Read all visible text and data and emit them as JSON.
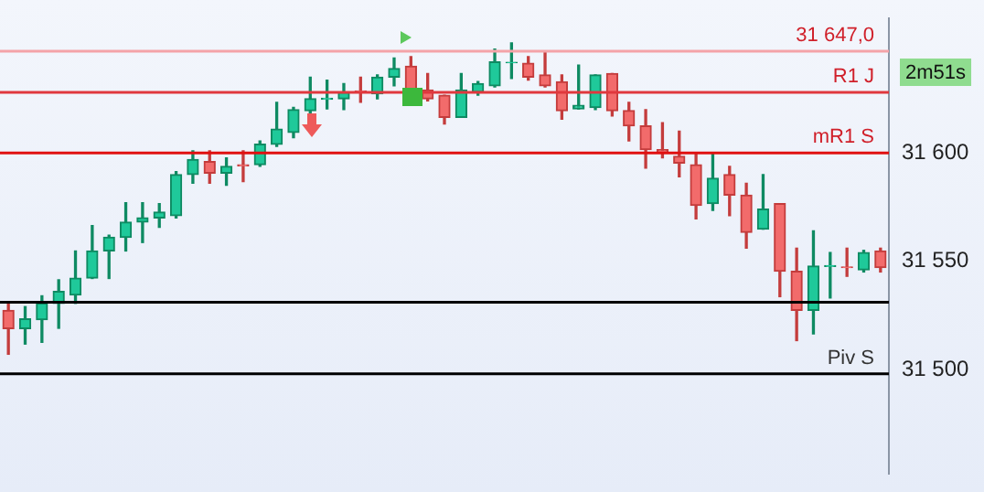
{
  "chart_data": {
    "type": "candlestick",
    "categories": [
      null,
      null,
      null,
      null,
      null,
      null,
      null,
      null,
      null,
      null,
      null,
      null,
      null,
      null,
      null,
      null,
      null,
      null,
      null,
      null,
      null,
      null,
      null,
      null,
      null,
      null,
      null,
      null,
      null,
      null,
      null,
      null,
      null,
      null,
      null,
      null,
      null,
      null,
      null,
      null,
      null,
      null,
      null,
      null,
      null,
      null,
      null,
      null,
      null,
      null,
      null,
      null,
      null
    ],
    "ohlc": [
      [
        31527.3,
        31530.5,
        31507,
        31518.8
      ],
      [
        31518.8,
        31529,
        31511.7,
        31523.4
      ],
      [
        31523,
        31534,
        31512.5,
        31530.5
      ],
      [
        31530.5,
        31541.4,
        31519,
        31536
      ],
      [
        31534.4,
        31554.7,
        31530.5,
        31542.2
      ],
      [
        31542.2,
        31566.4,
        31542,
        31554.7
      ],
      [
        31554.7,
        31562,
        31542,
        31561
      ],
      [
        31561,
        31577,
        31554.7,
        31568
      ],
      [
        31568,
        31577,
        31558.6,
        31570
      ],
      [
        31570,
        31576.6,
        31565.6,
        31572.7
      ],
      [
        31571,
        31591.4,
        31570,
        31590
      ],
      [
        31590,
        31601,
        31586,
        31597
      ],
      [
        31596,
        31601,
        31586,
        31590.6
      ],
      [
        31590.6,
        31597.7,
        31585,
        31593.8
      ],
      [
        31594.5,
        31601,
        31586.7,
        31594
      ],
      [
        31594.5,
        31605.5,
        31593.8,
        31604
      ],
      [
        31604,
        31623.4,
        31603,
        31611
      ],
      [
        31609.4,
        31621,
        31607,
        31620
      ],
      [
        31619.5,
        31635,
        31617,
        31625
      ],
      [
        31624.8,
        31633.6,
        31620.3,
        31625.2
      ],
      [
        31625,
        31632,
        31620,
        31628
      ],
      [
        31628.6,
        31635,
        31623.4,
        31628.2
      ],
      [
        31627.3,
        31636,
        31625,
        31635
      ],
      [
        31635,
        31643.8,
        31631,
        31639
      ],
      [
        31640,
        31644.5,
        31628,
        31628
      ],
      [
        31629,
        31636.7,
        31624,
        31625
      ],
      [
        31626.6,
        31626.6,
        31613.3,
        31616.4
      ],
      [
        31616.4,
        31636.7,
        31616.4,
        31629
      ],
      [
        31628,
        31633,
        31626.6,
        31632
      ],
      [
        31631,
        31648,
        31630.5,
        31642
      ],
      [
        31641.6,
        31650.8,
        31634.4,
        31641.8
      ],
      [
        31641.4,
        31644.5,
        31633.6,
        31635
      ],
      [
        31636,
        31647,
        31630.5,
        31631
      ],
      [
        31632.8,
        31636,
        31615.6,
        31619.5
      ],
      [
        31620.3,
        31640.6,
        31620.3,
        31622
      ],
      [
        31621,
        31636,
        31620,
        31636
      ],
      [
        31636.7,
        31636.7,
        31617,
        31619.5
      ],
      [
        31619.5,
        31623.4,
        31605.5,
        31612.5
      ],
      [
        31612.5,
        31620,
        31593,
        31601.5
      ],
      [
        31601.5,
        31614,
        31597.7,
        31600
      ],
      [
        31598.4,
        31610,
        31589,
        31595.3
      ],
      [
        31594.5,
        31600,
        31569.5,
        31575.8
      ],
      [
        31576.6,
        31600,
        31573.4,
        31588.3
      ],
      [
        31590,
        31593.8,
        31571,
        31580.5
      ],
      [
        31580.5,
        31586,
        31556,
        31563.3
      ],
      [
        31564.8,
        31590,
        31564.8,
        31574
      ],
      [
        31576.6,
        31576.6,
        31533.6,
        31545.3
      ],
      [
        31545.3,
        31556,
        31513.3,
        31527.3
      ],
      [
        31527.3,
        31564,
        31516.4,
        31547.7
      ],
      [
        31547.6,
        31554,
        31533,
        31548
      ],
      [
        31547.3,
        31556,
        31543,
        31547
      ],
      [
        31546,
        31555,
        31545,
        31554
      ],
      [
        31554.7,
        31556,
        31545,
        31547
      ]
    ],
    "ylim": [
      31452,
      31662
    ],
    "yticks": [
      {
        "value": 31500,
        "label": "31 500"
      },
      {
        "value": 31550,
        "label": "31 550"
      },
      {
        "value": 31600,
        "label": "31 600"
      }
    ],
    "ref_lines": [
      {
        "axis": "y",
        "value": 31647,
        "label": "31 647,0",
        "color": "#f4a3a8"
      },
      {
        "axis": "y",
        "value": 31628,
        "label": "R1 J",
        "color": "#e0383e"
      },
      {
        "axis": "y",
        "value": 31600,
        "label": "mR1 S",
        "color": "#e01010"
      },
      {
        "axis": "y",
        "value": 31531,
        "color": "#000000"
      },
      {
        "axis": "y",
        "value": 31498,
        "label": "Piv S",
        "color": "#000000"
      }
    ],
    "annotations": [
      "2m51s"
    ],
    "tick_labels": "y",
    "legend": false,
    "grid": false
  }
}
